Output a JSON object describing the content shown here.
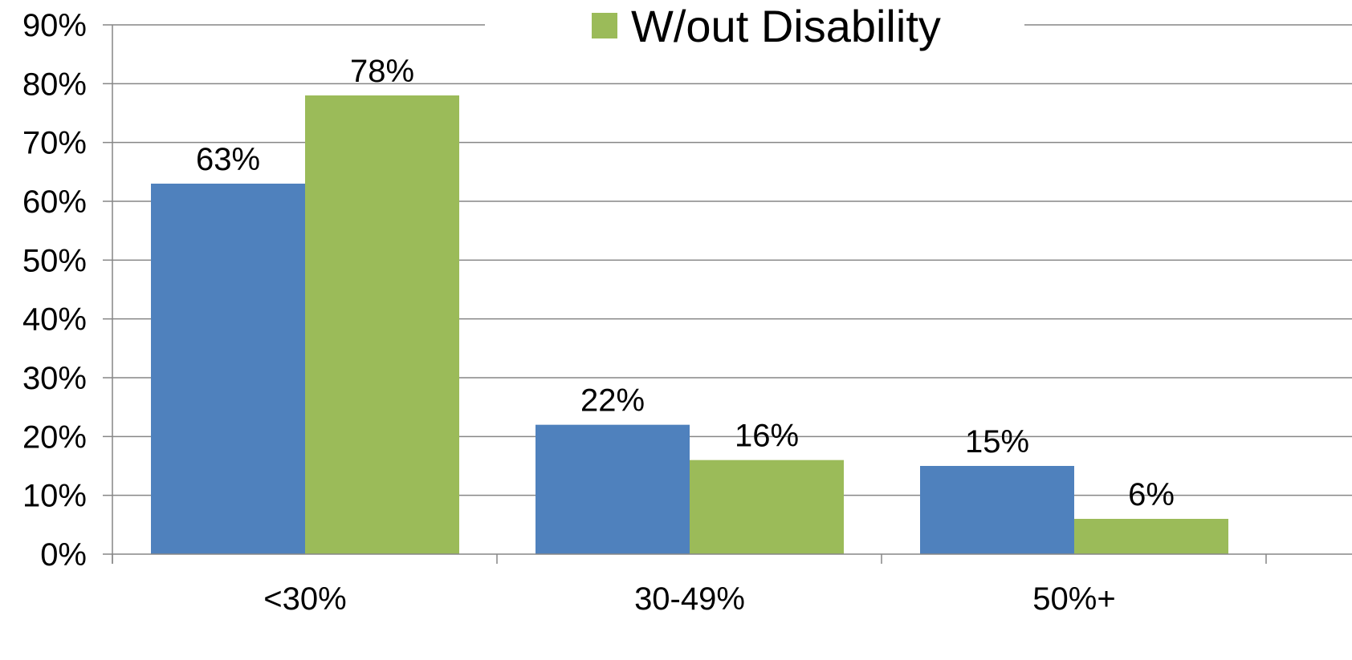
{
  "chart_data": {
    "type": "bar",
    "categories": [
      "<30%",
      "30-49%",
      "50%+"
    ],
    "series": [
      {
        "values": [
          63,
          22,
          15
        ],
        "labels": [
          "63%",
          "22%",
          "15%"
        ],
        "color": "#4f81bd"
      },
      {
        "name": "W/out Disability",
        "values": [
          78,
          16,
          6
        ],
        "labels": [
          "78%",
          "16%",
          "6%"
        ],
        "color": "#9bbb59"
      }
    ],
    "y_ticks": [
      {
        "value": 0,
        "label": "0%"
      },
      {
        "value": 10,
        "label": "10%"
      },
      {
        "value": 20,
        "label": "20%"
      },
      {
        "value": 30,
        "label": "30%"
      },
      {
        "value": 40,
        "label": "40%"
      },
      {
        "value": 50,
        "label": "50%"
      },
      {
        "value": 60,
        "label": "60%"
      },
      {
        "value": 70,
        "label": "70%"
      },
      {
        "value": 80,
        "label": "80%"
      },
      {
        "value": 90,
        "label": "90%"
      }
    ],
    "ylim": [
      0,
      90
    ],
    "grid": true,
    "gridline_color": "#868686",
    "axis_color": "#868686",
    "legend": {
      "position": "top",
      "entries": [
        "W/out Disability"
      ]
    },
    "title": "",
    "xlabel": "",
    "ylabel": ""
  }
}
